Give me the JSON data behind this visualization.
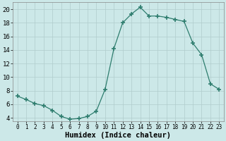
{
  "x": [
    0,
    1,
    2,
    3,
    4,
    5,
    6,
    7,
    8,
    9,
    10,
    11,
    12,
    13,
    14,
    15,
    16,
    17,
    18,
    19,
    20,
    21,
    22,
    23
  ],
  "y": [
    7.2,
    6.7,
    6.1,
    5.8,
    5.1,
    4.2,
    3.8,
    3.9,
    4.2,
    5.0,
    8.2,
    14.2,
    18.0,
    19.3,
    20.3,
    19.0,
    19.0,
    18.8,
    18.5,
    18.2,
    15.0,
    13.3,
    9.0,
    8.2
  ],
  "line_color": "#2e7d6e",
  "marker": "+",
  "marker_size": 4,
  "marker_lw": 1.2,
  "bg_color": "#cce8e8",
  "grid_color": "#b0cccc",
  "xlabel": "Humidex (Indice chaleur)",
  "ylim": [
    3.5,
    21
  ],
  "xlim": [
    -0.5,
    23.5
  ],
  "yticks": [
    4,
    6,
    8,
    10,
    12,
    14,
    16,
    18,
    20
  ],
  "xticks": [
    0,
    1,
    2,
    3,
    4,
    5,
    6,
    7,
    8,
    9,
    10,
    11,
    12,
    13,
    14,
    15,
    16,
    17,
    18,
    19,
    20,
    21,
    22,
    23
  ],
  "xlabel_fontsize": 7.5,
  "tick_fontsize": 6.5
}
